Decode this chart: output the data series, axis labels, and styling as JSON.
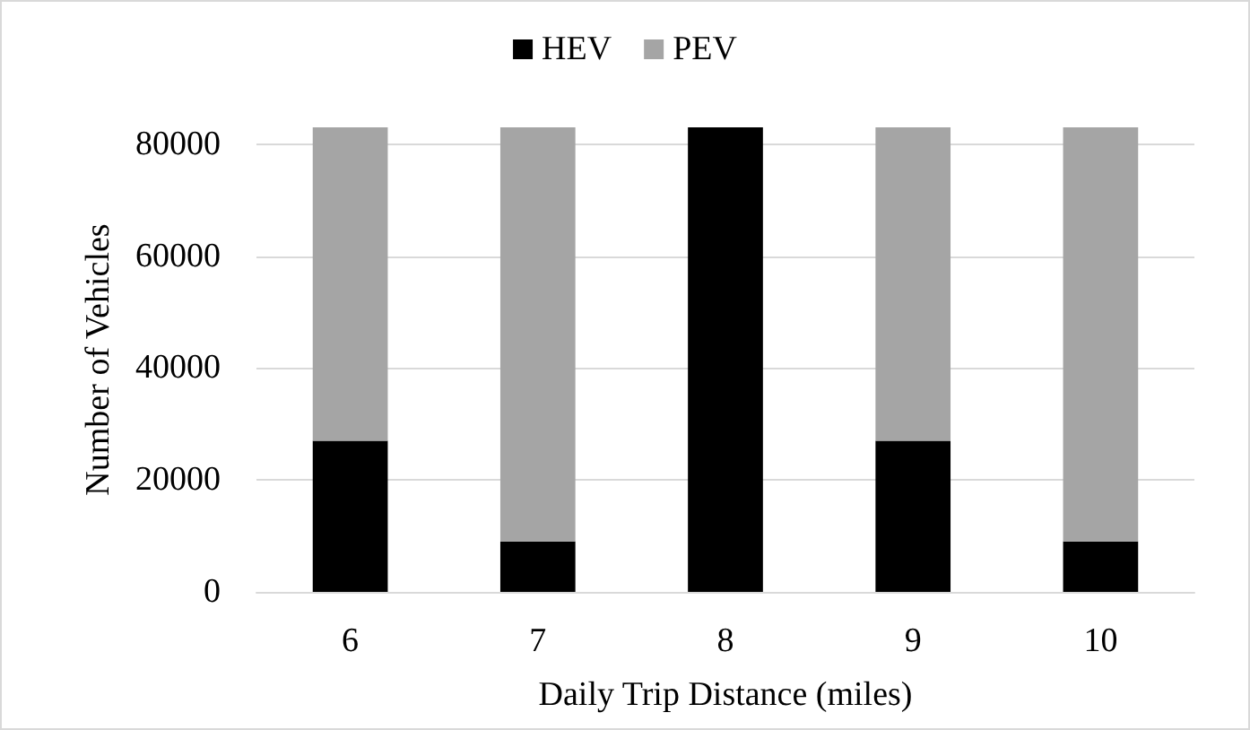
{
  "chart_data": {
    "type": "bar",
    "stacked": true,
    "xlabel": "Daily Trip Distance (miles)",
    "ylabel": "Number of Vehicles",
    "categories": [
      "6",
      "7",
      "8",
      "9",
      "10"
    ],
    "series": [
      {
        "name": "HEV",
        "color": "#000000",
        "values": [
          27000,
          9000,
          83000,
          27000,
          9000
        ]
      },
      {
        "name": "PEV",
        "color": "#a5a5a5",
        "values": [
          56000,
          74000,
          0,
          56000,
          74000
        ]
      }
    ],
    "ylim": [
      0,
      83000
    ],
    "yticks": [
      0,
      20000,
      40000,
      60000,
      80000
    ],
    "grid": "y",
    "legend": "top"
  }
}
